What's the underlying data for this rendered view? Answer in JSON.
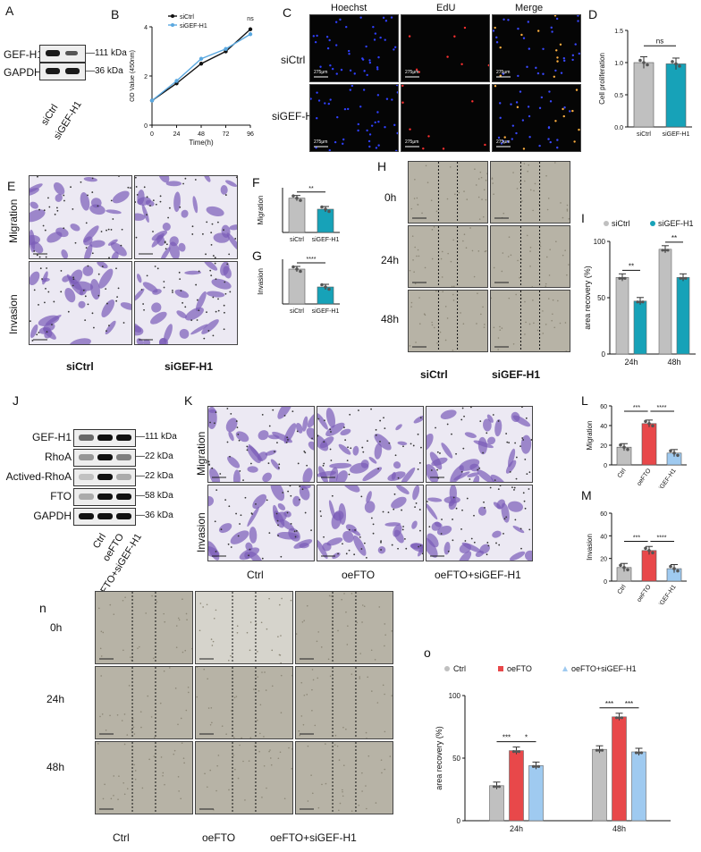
{
  "colors": {
    "ctrl": "#c0c0c0",
    "sigef": "#17a2b8",
    "oefto": "#e8484a",
    "combo": "#9fcaf0",
    "line_ctrl": "#111111",
    "line_si": "#5aa8e0",
    "blot_bg": "#f4f4f4",
    "eduBg": "#050505"
  },
  "panel_letters": {
    "A": "A",
    "B": "B",
    "C": "C",
    "D": "D",
    "E": "E",
    "F": "F",
    "G": "G",
    "H": "H",
    "I": "I",
    "J": "J",
    "K": "K",
    "L": "L",
    "M": "M",
    "n": "n",
    "o": "o"
  },
  "panelA": {
    "proteins": [
      "GEF-H1",
      "GAPDH"
    ],
    "sizes": [
      "111 kDa",
      "36 kDa"
    ],
    "lanes": [
      "siCtrl",
      "siGEF-H1"
    ]
  },
  "panelC": {
    "cols": [
      "Hoechst",
      "EdU",
      "Merge"
    ],
    "rows": [
      "siCtrl",
      "siGEF-H1"
    ],
    "scale": "275μm"
  },
  "panelE": {
    "rows": [
      "Migration",
      "Invasion"
    ],
    "cols": [
      "siCtrl",
      "siGEF-H1"
    ]
  },
  "panelH": {
    "rows": [
      "0h",
      "24h",
      "48h"
    ],
    "cols": [
      "siCtrl",
      "siGEF-H1"
    ]
  },
  "panelJ": {
    "proteins": [
      "GEF-H1",
      "RhoA",
      "Actived-RhoA",
      "FTO",
      "GAPDH"
    ],
    "sizes": [
      "111 kDa",
      "22 kDa",
      "22 kDa",
      "58 kDa",
      "36 kDa"
    ],
    "lanes": [
      "Ctrl",
      "oeFTO",
      "oeFTO+siGEF-H1"
    ]
  },
  "panelK": {
    "rows": [
      "Migration",
      "Invasion"
    ],
    "cols": [
      "Ctrl",
      "oeFTO",
      "oeFTO+siGEF-H1"
    ]
  },
  "panelN": {
    "rows": [
      "0h",
      "24h",
      "48h"
    ],
    "cols": [
      "Ctrl",
      "oeFTO",
      "oeFTO+siGEF-H1"
    ]
  },
  "chart_data": [
    {
      "id": "B",
      "type": "line",
      "xlabel": "Time(h)",
      "ylabel": "OD Value (450nm)",
      "x": [
        0,
        24,
        48,
        72,
        96
      ],
      "xlim": [
        0,
        96
      ],
      "ylim": [
        0,
        4
      ],
      "yticks": [
        0,
        2,
        4
      ],
      "series": [
        {
          "name": "siCtrl",
          "values": [
            1.0,
            1.7,
            2.5,
            3.0,
            3.9
          ]
        },
        {
          "name": "siGEF-H1",
          "values": [
            1.0,
            1.8,
            2.7,
            3.1,
            3.7
          ]
        }
      ],
      "annotation": "ns"
    },
    {
      "id": "D",
      "type": "bar",
      "ylabel": "Cell proliferation",
      "categories": [
        "siCtrl",
        "siGEF-H1"
      ],
      "values": [
        1.0,
        0.98
      ],
      "ylim": [
        0,
        1.5
      ],
      "yticks": [
        "0.0",
        "0.5",
        "1.0",
        "1.5"
      ],
      "annotation": "ns"
    },
    {
      "id": "F",
      "type": "bar",
      "ylabel": "Migration",
      "categories": [
        "siCtrl",
        "siGEF-H1"
      ],
      "values": [
        115,
        78
      ],
      "ylim": [
        0,
        150
      ],
      "annotation": "**"
    },
    {
      "id": "G",
      "type": "bar",
      "ylabel": "Invasion",
      "categories": [
        "siCtrl",
        "siGEF-H1"
      ],
      "values": [
        78,
        38
      ],
      "ylim": [
        0,
        100
      ],
      "annotation": "****"
    },
    {
      "id": "I",
      "type": "bar",
      "ylabel": "area recovery (%)",
      "categories": [
        "24h",
        "48h"
      ],
      "series": [
        {
          "name": "siCtrl",
          "values": [
            68,
            93
          ]
        },
        {
          "name": "siGEF-H1",
          "values": [
            47,
            68
          ]
        }
      ],
      "ylim": [
        0,
        100
      ],
      "yticks": [
        0,
        50,
        100
      ],
      "annotations": [
        "**",
        "**"
      ],
      "legend": "top"
    },
    {
      "id": "L",
      "type": "bar",
      "ylabel": "Migration",
      "categories": [
        "Ctrl",
        "oeFTO",
        "oeFTO+siGEF-H1"
      ],
      "values": [
        18,
        42,
        12
      ],
      "ylim": [
        0,
        60
      ],
      "yticks": [
        0,
        20,
        40,
        60
      ],
      "annotations": [
        "***",
        "****"
      ]
    },
    {
      "id": "M",
      "type": "bar",
      "ylabel": "Invasion",
      "categories": [
        "Ctrl",
        "oeFTO",
        "oeFTO+siGEF-H1"
      ],
      "values": [
        12,
        27,
        11
      ],
      "ylim": [
        0,
        60
      ],
      "yticks": [
        0,
        20,
        40,
        60
      ],
      "annotations": [
        "***",
        "****"
      ]
    },
    {
      "id": "o",
      "type": "bar",
      "ylabel": "area recovery (%)",
      "categories": [
        "24h",
        "48h"
      ],
      "series": [
        {
          "name": "Ctrl",
          "values": [
            28,
            57
          ]
        },
        {
          "name": "oeFTO",
          "values": [
            56,
            83
          ]
        },
        {
          "name": "oeFTO+siGEF-H1",
          "values": [
            44,
            55
          ]
        }
      ],
      "ylim": [
        0,
        100
      ],
      "yticks": [
        0,
        50,
        100
      ],
      "annotations": [
        "***",
        "*",
        "***",
        "***"
      ],
      "legend": "top"
    }
  ]
}
